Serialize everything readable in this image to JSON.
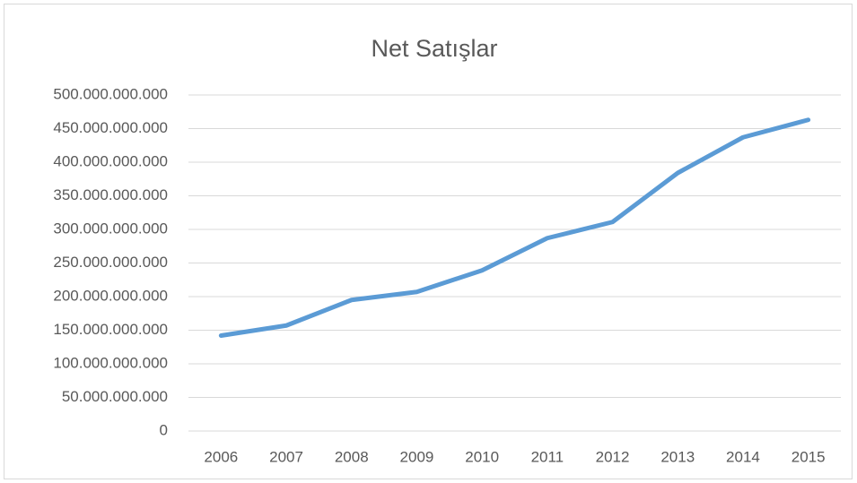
{
  "chart_data": {
    "type": "line",
    "title": "Net Satışlar",
    "categories": [
      "2006",
      "2007",
      "2008",
      "2009",
      "2010",
      "2011",
      "2012",
      "2013",
      "2014",
      "2015"
    ],
    "series": [
      {
        "name": "Net Satışlar",
        "color": "#5b9bd5",
        "values": [
          142000000000,
          157000000000,
          195000000000,
          207000000000,
          239000000000,
          287000000000,
          311000000000,
          384000000000,
          437000000000,
          463000000000
        ]
      }
    ],
    "ylim": [
      0,
      500000000000
    ],
    "yticks": [
      0,
      {
        "value": 50000000000,
        "label": "50.000.000.000"
      },
      {
        "value": 100000000000,
        "label": "100.000.000.000"
      },
      {
        "value": 150000000000,
        "label": "150.000.000.000"
      },
      {
        "value": 200000000000,
        "label": "200.000.000.000"
      },
      {
        "value": 250000000000,
        "label": "250.000.000.000"
      },
      {
        "value": 300000000000,
        "label": "300.000.000.000"
      },
      {
        "value": 350000000000,
        "label": "350.000.000.000"
      },
      {
        "value": 400000000000,
        "label": "400.000.000.000"
      },
      {
        "value": 450000000000,
        "label": "450.000.000.000"
      },
      {
        "value": 500000000000,
        "label": "500.000.000.000"
      }
    ],
    "grid": true
  }
}
